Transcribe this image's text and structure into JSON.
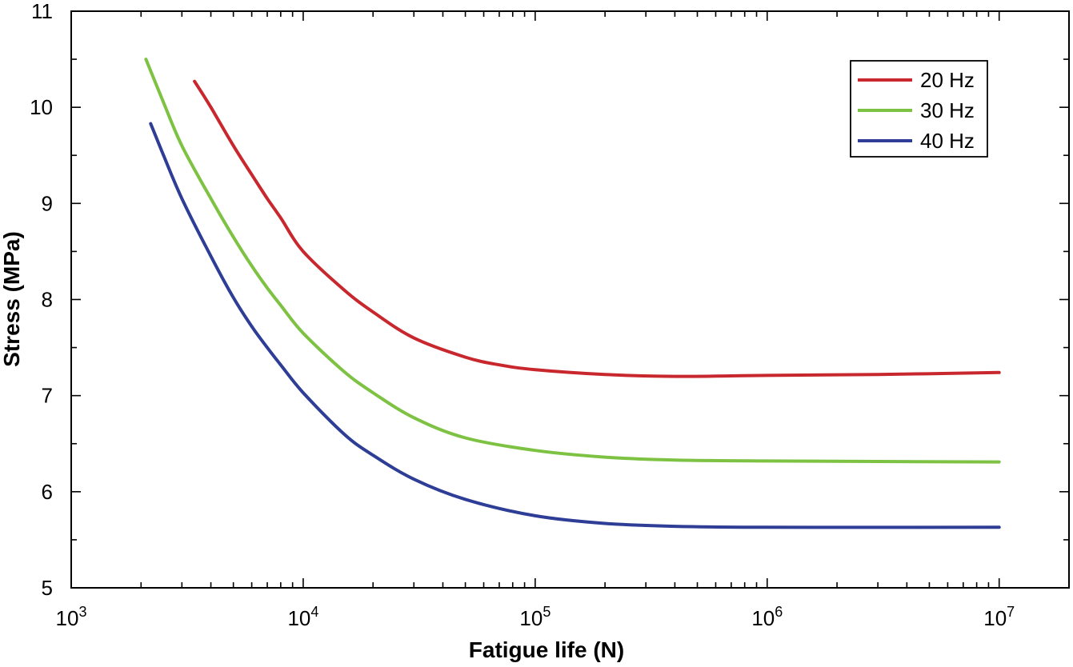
{
  "chart_data": {
    "type": "line",
    "title": "",
    "xlabel": "Fatigue life (N)",
    "ylabel": "Stress (MPa)",
    "x_scale": "log",
    "xlim": [
      1000,
      20000000
    ],
    "ylim": [
      5,
      11
    ],
    "x_ticks": [
      {
        "value": 1000,
        "base": "10",
        "exp": "3"
      },
      {
        "value": 10000,
        "base": "10",
        "exp": "4"
      },
      {
        "value": 100000,
        "base": "10",
        "exp": "5"
      },
      {
        "value": 1000000,
        "base": "10",
        "exp": "6"
      },
      {
        "value": 10000000,
        "base": "10",
        "exp": "7"
      }
    ],
    "y_ticks": [
      5,
      6,
      7,
      8,
      9,
      10,
      11
    ],
    "grid": false,
    "legend_position": "top-right",
    "series": [
      {
        "name": "20 Hz",
        "color": "#c8282d",
        "x": [
          3400,
          4000,
          5000,
          6000,
          7000,
          8000,
          10000,
          15000,
          20000,
          30000,
          50000,
          70000,
          100000,
          200000,
          400000,
          1000000,
          3000000,
          10000000
        ],
        "y": [
          10.27,
          10.0,
          9.6,
          9.3,
          9.05,
          8.85,
          8.5,
          8.1,
          7.87,
          7.6,
          7.4,
          7.32,
          7.27,
          7.22,
          7.2,
          7.21,
          7.22,
          7.24
        ]
      },
      {
        "name": "30 Hz",
        "color": "#7dc242",
        "x": [
          2100,
          2500,
          3000,
          4000,
          5000,
          6000,
          7000,
          8000,
          10000,
          15000,
          20000,
          30000,
          50000,
          100000,
          200000,
          400000,
          1000000,
          10000000
        ],
        "y": [
          10.5,
          10.05,
          9.6,
          9.05,
          8.65,
          8.35,
          8.12,
          7.94,
          7.65,
          7.25,
          7.03,
          6.77,
          6.56,
          6.43,
          6.36,
          6.33,
          6.32,
          6.31
        ]
      },
      {
        "name": "40 Hz",
        "color": "#2e3d96",
        "x": [
          2200,
          2500,
          3000,
          4000,
          5000,
          6000,
          7000,
          8000,
          10000,
          15000,
          20000,
          30000,
          50000,
          100000,
          200000,
          400000,
          1000000,
          10000000
        ],
        "y": [
          9.83,
          9.5,
          9.05,
          8.45,
          8.02,
          7.72,
          7.5,
          7.32,
          7.03,
          6.6,
          6.38,
          6.13,
          5.92,
          5.75,
          5.67,
          5.64,
          5.63,
          5.63
        ]
      }
    ]
  }
}
